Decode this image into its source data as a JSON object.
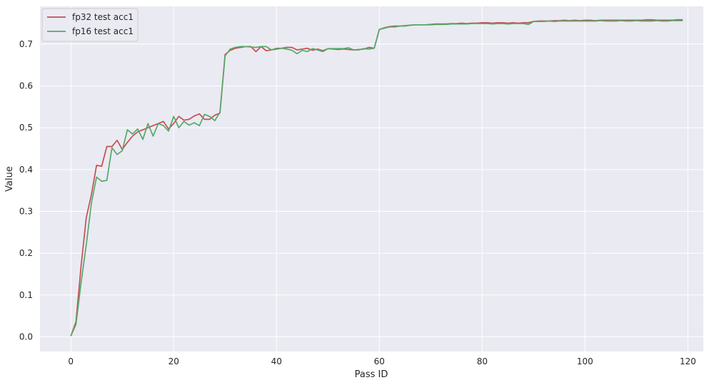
{
  "chart_data": {
    "type": "line",
    "xlabel": "Pass ID",
    "ylabel": "Value",
    "xlim": [
      -6,
      123
    ],
    "ylim": [
      -0.035,
      0.79
    ],
    "xticks": [
      "0",
      "20",
      "40",
      "60",
      "80",
      "100",
      "120"
    ],
    "yticks": [
      "0.0",
      "0.1",
      "0.2",
      "0.3",
      "0.4",
      "0.5",
      "0.6",
      "0.7"
    ],
    "grid": true,
    "legend_position": "top-left",
    "colors": {
      "plot_bg": "#eaeaf2",
      "grid": "#ffffff"
    },
    "series": [
      {
        "name": "fp32 test acc1",
        "color": "#c44e52",
        "values": [
          0.002,
          0.036,
          0.17,
          0.285,
          0.34,
          0.41,
          0.408,
          0.455,
          0.455,
          0.47,
          0.448,
          0.465,
          0.48,
          0.49,
          0.495,
          0.5,
          0.505,
          0.51,
          0.515,
          0.497,
          0.51,
          0.527,
          0.518,
          0.52,
          0.528,
          0.533,
          0.52,
          0.52,
          0.53,
          0.535,
          0.675,
          0.685,
          0.69,
          0.692,
          0.694,
          0.694,
          0.682,
          0.694,
          0.684,
          0.686,
          0.688,
          0.69,
          0.692,
          0.692,
          0.686,
          0.688,
          0.69,
          0.685,
          0.688,
          0.684,
          0.689,
          0.688,
          0.687,
          0.688,
          0.687,
          0.686,
          0.687,
          0.688,
          0.692,
          0.69,
          0.735,
          0.739,
          0.742,
          0.743,
          0.743,
          0.744,
          0.745,
          0.746,
          0.746,
          0.746,
          0.747,
          0.748,
          0.748,
          0.748,
          0.749,
          0.749,
          0.75,
          0.749,
          0.75,
          0.75,
          0.751,
          0.751,
          0.75,
          0.751,
          0.751,
          0.75,
          0.751,
          0.75,
          0.751,
          0.751,
          0.754,
          0.755,
          0.755,
          0.755,
          0.756,
          0.756,
          0.757,
          0.756,
          0.757,
          0.756,
          0.757,
          0.757,
          0.756,
          0.757,
          0.757,
          0.757,
          0.757,
          0.757,
          0.757,
          0.757,
          0.757,
          0.757,
          0.758,
          0.758,
          0.757,
          0.757,
          0.757,
          0.757,
          0.758,
          0.758
        ]
      },
      {
        "name": "fp16 test acc1",
        "color": "#55a868",
        "values": [
          0.002,
          0.03,
          0.13,
          0.22,
          0.32,
          0.382,
          0.372,
          0.374,
          0.452,
          0.436,
          0.445,
          0.495,
          0.485,
          0.497,
          0.472,
          0.51,
          0.48,
          0.51,
          0.505,
          0.492,
          0.527,
          0.5,
          0.515,
          0.506,
          0.512,
          0.505,
          0.532,
          0.527,
          0.517,
          0.537,
          0.672,
          0.688,
          0.692,
          0.694,
          0.694,
          0.693,
          0.692,
          0.694,
          0.694,
          0.686,
          0.69,
          0.69,
          0.688,
          0.685,
          0.677,
          0.685,
          0.682,
          0.689,
          0.686,
          0.682,
          0.689,
          0.689,
          0.689,
          0.689,
          0.691,
          0.686,
          0.686,
          0.689,
          0.688,
          0.69,
          0.735,
          0.738,
          0.741,
          0.741,
          0.743,
          0.743,
          0.745,
          0.746,
          0.746,
          0.746,
          0.746,
          0.747,
          0.747,
          0.747,
          0.748,
          0.748,
          0.748,
          0.748,
          0.749,
          0.749,
          0.749,
          0.749,
          0.748,
          0.749,
          0.749,
          0.748,
          0.749,
          0.749,
          0.749,
          0.747,
          0.754,
          0.754,
          0.754,
          0.755,
          0.754,
          0.755,
          0.755,
          0.755,
          0.755,
          0.755,
          0.755,
          0.755,
          0.755,
          0.756,
          0.755,
          0.755,
          0.755,
          0.756,
          0.755,
          0.755,
          0.756,
          0.755,
          0.755,
          0.755,
          0.756,
          0.755,
          0.755,
          0.756,
          0.756,
          0.756
        ]
      }
    ]
  }
}
